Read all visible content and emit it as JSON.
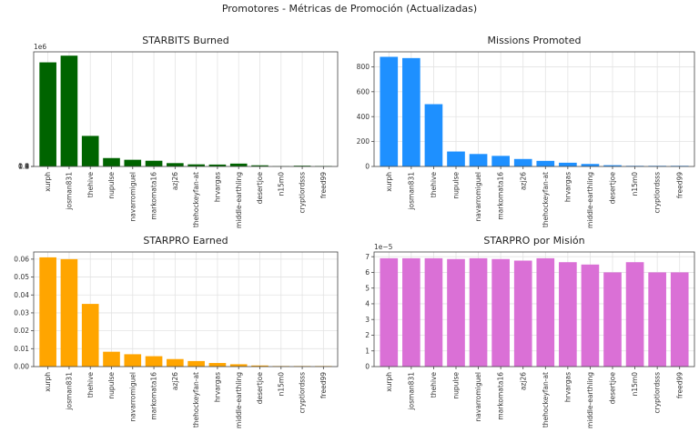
{
  "suptitle": "Promotores - Métricas de Promoción (Actualizadas)",
  "chart_data": [
    {
      "type": "bar",
      "title": "STARBITS Burned",
      "categories": [
        "xurph",
        "josman831",
        "thehive",
        "nupulse",
        "navarromiguel",
        "markomata16",
        "azj26",
        "thehockeyfan-at",
        "hrvargas",
        "middle-earthling",
        "desertjoe",
        "n15m0",
        "cryptlordsss",
        "freed99"
      ],
      "values": [
        1090000,
        1160000,
        320000,
        88000,
        70000,
        60000,
        35000,
        22000,
        20000,
        30000,
        12000,
        3000,
        8000,
        5000
      ],
      "ylim": [
        0,
        1200000
      ],
      "yticks": [
        0,
        0.2,
        0.4,
        0.6,
        0.8,
        1.0,
        1.2
      ],
      "ytick_labels": [
        "0.0",
        "0.2",
        "0.4",
        "0.6",
        "0.8",
        "1.0",
        "1.2"
      ],
      "offset_label": "1e6",
      "color": "#006400",
      "grid": true
    },
    {
      "type": "bar",
      "title": "Missions Promoted",
      "categories": [
        "xurph",
        "josman831",
        "thehive",
        "nupulse",
        "navarromiguel",
        "markomata16",
        "azj26",
        "thehockeyfan-at",
        "hrvargas",
        "middle-earthling",
        "desertjoe",
        "n15m0",
        "cryptlordsss",
        "freed99"
      ],
      "values": [
        880,
        870,
        500,
        120,
        100,
        85,
        60,
        45,
        30,
        20,
        10,
        5,
        5,
        5
      ],
      "ylim": [
        0,
        920
      ],
      "yticks": [
        0,
        200,
        400,
        600,
        800
      ],
      "ytick_labels": [
        "0",
        "200",
        "400",
        "600",
        "800"
      ],
      "offset_label": "",
      "color": "#1e90ff",
      "grid": true
    },
    {
      "type": "bar",
      "title": "STARPRO Earned",
      "categories": [
        "xurph",
        "josman831",
        "thehive",
        "nupulse",
        "navarromiguel",
        "markomata16",
        "azj26",
        "thehockeyfan-at",
        "hrvargas",
        "middle-earthling",
        "desertjoe",
        "n15m0",
        "cryptlordsss",
        "freed99"
      ],
      "values": [
        0.061,
        0.06,
        0.035,
        0.0083,
        0.0069,
        0.0058,
        0.0042,
        0.0031,
        0.002,
        0.0013,
        0.0006,
        0.0003,
        0.0003,
        0.0003
      ],
      "ylim": [
        0,
        0.064
      ],
      "yticks": [
        0,
        0.01,
        0.02,
        0.03,
        0.04,
        0.05,
        0.06
      ],
      "ytick_labels": [
        "0.00",
        "0.01",
        "0.02",
        "0.03",
        "0.04",
        "0.05",
        "0.06"
      ],
      "offset_label": "",
      "color": "#ffa500",
      "grid": true
    },
    {
      "type": "bar",
      "title": "STARPRO por Misión",
      "categories": [
        "xurph",
        "josman831",
        "thehive",
        "nupulse",
        "navarromiguel",
        "markomata16",
        "azj26",
        "thehockeyfan-at",
        "hrvargas",
        "middle-earthling",
        "desertjoe",
        "n15m0",
        "cryptlordsss",
        "freed99"
      ],
      "values": [
        6.9e-05,
        6.9e-05,
        6.9e-05,
        6.85e-05,
        6.9e-05,
        6.85e-05,
        6.75e-05,
        6.9e-05,
        6.65e-05,
        6.5e-05,
        6e-05,
        6.65e-05,
        6e-05,
        6e-05
      ],
      "ylim": [
        0,
        7.3e-05
      ],
      "yticks": [
        0,
        1e-05,
        2e-05,
        3e-05,
        4e-05,
        5e-05,
        6e-05,
        7e-05
      ],
      "ytick_labels": [
        "0",
        "1",
        "2",
        "3",
        "4",
        "5",
        "6",
        "7"
      ],
      "offset_label": "1e−5",
      "color": "#da70d6",
      "grid": true
    }
  ]
}
